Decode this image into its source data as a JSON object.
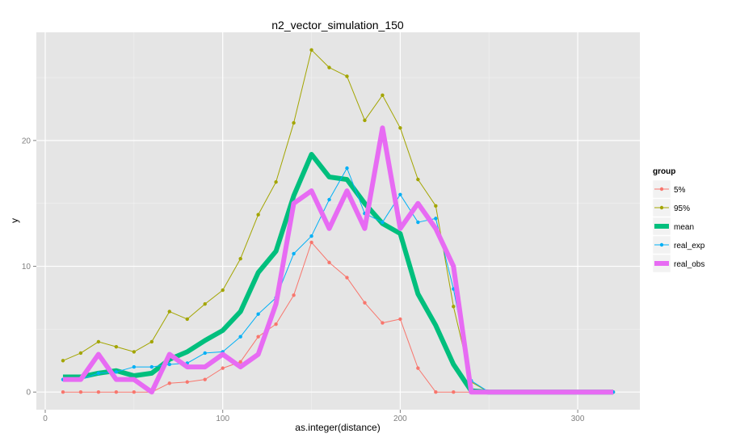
{
  "chart_data": {
    "type": "line",
    "title": "n2_vector_simulation_150",
    "xlabel": "as.integer(distance)",
    "ylabel": "y",
    "xlim": [
      -5,
      335
    ],
    "ylim": [
      -1.4,
      28.6
    ],
    "x_ticks": [
      0,
      100,
      200,
      300
    ],
    "x_tick_labels": [
      "0",
      "100",
      "200",
      "300"
    ],
    "y_ticks": [
      0,
      10,
      20
    ],
    "y_tick_labels": [
      "0",
      "10",
      "20"
    ],
    "grid": true,
    "legend": {
      "title": "group",
      "position": "right"
    },
    "x": [
      10,
      20,
      30,
      40,
      50,
      60,
      70,
      80,
      90,
      100,
      110,
      120,
      130,
      140,
      150,
      160,
      170,
      180,
      190,
      200,
      210,
      220,
      230,
      240,
      250,
      260,
      270,
      280,
      290,
      300,
      310,
      320
    ],
    "series": [
      {
        "name": "5%",
        "color": "#F8766D",
        "style": "points-line",
        "values": [
          0,
          0,
          0,
          0,
          0,
          0,
          0.7,
          0.8,
          1.0,
          1.9,
          2.4,
          4.4,
          5.4,
          7.7,
          11.9,
          10.3,
          9.1,
          7.1,
          5.5,
          5.8,
          1.9,
          0,
          0,
          0,
          0,
          0,
          0,
          0,
          0,
          0,
          0,
          0
        ]
      },
      {
        "name": "95%",
        "color": "#A3A500",
        "style": "points-line",
        "values": [
          2.5,
          3.1,
          4.0,
          3.6,
          3.2,
          4.0,
          6.4,
          5.8,
          7.0,
          8.1,
          10.6,
          14.1,
          16.7,
          21.4,
          27.2,
          25.8,
          25.1,
          21.6,
          23.6,
          21.0,
          16.9,
          14.8,
          6.8,
          0.8,
          0,
          0,
          0,
          0,
          0,
          0,
          0,
          0
        ]
      },
      {
        "name": "mean",
        "color": "#00BF7D",
        "style": "thick-line",
        "values": [
          1.2,
          1.2,
          1.5,
          1.7,
          1.3,
          1.5,
          2.6,
          3.2,
          4.1,
          4.9,
          6.4,
          9.5,
          11.2,
          15.6,
          18.9,
          17.1,
          16.9,
          15.0,
          13.4,
          12.6,
          7.8,
          5.3,
          2.2,
          0.1,
          0,
          0,
          0,
          0,
          0,
          0,
          0,
          0
        ]
      },
      {
        "name": "real_exp",
        "color": "#00B0F6",
        "style": "points-line",
        "values": [
          1.0,
          1.0,
          1.5,
          1.6,
          2.0,
          2.0,
          2.2,
          2.3,
          3.1,
          3.2,
          4.4,
          6.2,
          7.5,
          11.0,
          12.4,
          15.3,
          17.8,
          14.2,
          13.5,
          15.7,
          13.5,
          13.8,
          8.2,
          0.9,
          0,
          0,
          0,
          0,
          0,
          0,
          0,
          0
        ]
      },
      {
        "name": "real_obs",
        "color": "#E76BF3",
        "style": "thick-line",
        "values": [
          1,
          1,
          3,
          1,
          1,
          0,
          3,
          2,
          2,
          3,
          2,
          3,
          7,
          15,
          16,
          13,
          16,
          13,
          21,
          13,
          15,
          13,
          10,
          0,
          0,
          0,
          0,
          0,
          0,
          0,
          0,
          0
        ]
      }
    ]
  }
}
